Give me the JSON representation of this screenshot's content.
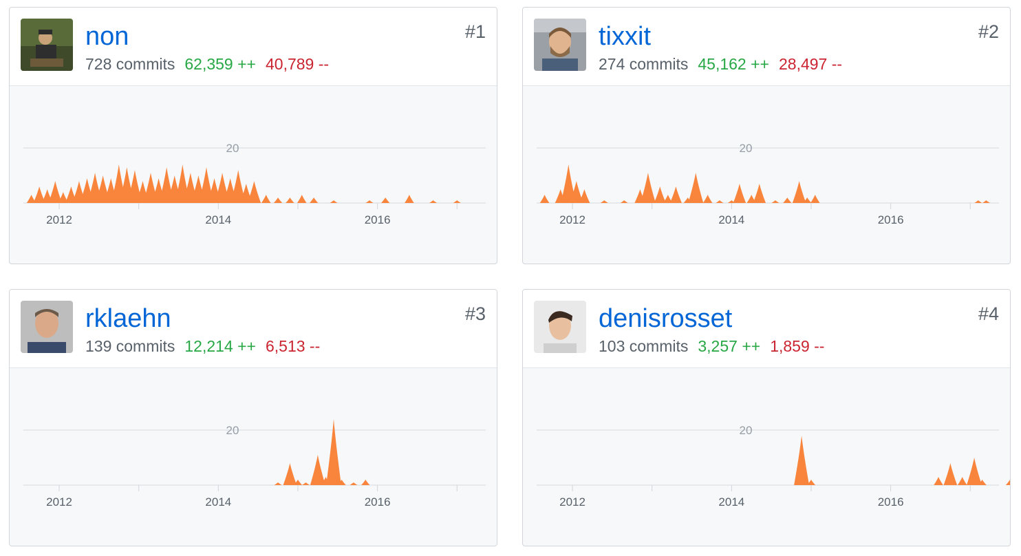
{
  "contributors": [
    {
      "username": "non",
      "commits": "728 commits",
      "additions": "62,359 ++",
      "deletions": "40,789 --",
      "rank": "#1",
      "avatar_icon": "avatar-photo-outdoor"
    },
    {
      "username": "tixxit",
      "commits": "274 commits",
      "additions": "45,162 ++",
      "deletions": "28,497 --",
      "rank": "#2",
      "avatar_icon": "avatar-photo-bearded"
    },
    {
      "username": "rklaehn",
      "commits": "139 commits",
      "additions": "12,214 ++",
      "deletions": "6,513 --",
      "rank": "#3",
      "avatar_icon": "avatar-photo-portrait"
    },
    {
      "username": "denisrosset",
      "commits": "103 commits",
      "additions": "3,257 ++",
      "deletions": "1,859 --",
      "rank": "#4",
      "avatar_icon": "avatar-photo-young"
    }
  ],
  "colors": {
    "link": "#0366d6",
    "additions": "#28a745",
    "deletions": "#cb2431",
    "area": "#f9843c"
  },
  "chart_data": [
    {
      "type": "area",
      "x_tick_labels": [
        "2012",
        "2014",
        "2016",
        "20"
      ],
      "y_grid_label": "20",
      "ylim": [
        0,
        25
      ],
      "x": [
        2011.65,
        2011.75,
        2011.85,
        2011.95,
        2012.05,
        2012.15,
        2012.25,
        2012.35,
        2012.45,
        2012.55,
        2012.65,
        2012.75,
        2012.85,
        2012.95,
        2013.05,
        2013.15,
        2013.25,
        2013.35,
        2013.45,
        2013.55,
        2013.65,
        2013.75,
        2013.85,
        2013.95,
        2014.05,
        2014.15,
        2014.25,
        2014.35,
        2014.45,
        2014.6,
        2014.75,
        2014.9,
        2015.05,
        2015.2,
        2015.45,
        2015.9,
        2016.1,
        2016.4,
        2016.7,
        2017.0
      ],
      "values": [
        3,
        6,
        5,
        8,
        4,
        6,
        8,
        9,
        11,
        10,
        9,
        14,
        13,
        12,
        8,
        11,
        9,
        13,
        10,
        14,
        11,
        10,
        13,
        9,
        11,
        9,
        12,
        7,
        8,
        3,
        2,
        2,
        3,
        2,
        1,
        1,
        2,
        3,
        1,
        1
      ]
    },
    {
      "type": "area",
      "x_tick_labels": [
        "2012",
        "2014",
        "2016",
        "20"
      ],
      "y_grid_label": "20",
      "ylim": [
        0,
        25
      ],
      "x": [
        2011.65,
        2011.85,
        2011.95,
        2012.05,
        2012.15,
        2012.4,
        2012.65,
        2012.85,
        2012.95,
        2013.1,
        2013.2,
        2013.3,
        2013.45,
        2013.55,
        2013.7,
        2013.85,
        2014.0,
        2014.1,
        2014.25,
        2014.35,
        2014.55,
        2014.7,
        2014.85,
        2014.95,
        2015.05,
        2017.1,
        2017.2
      ],
      "values": [
        3,
        5,
        14,
        8,
        5,
        1,
        1,
        5,
        11,
        6,
        3,
        6,
        2,
        11,
        3,
        1,
        1,
        7,
        3,
        7,
        1,
        2,
        8,
        2,
        3,
        1,
        1
      ]
    },
    {
      "type": "area",
      "x_tick_labels": [
        "2012",
        "2014",
        "2016",
        "20"
      ],
      "y_grid_label": "20",
      "ylim": [
        0,
        25
      ],
      "x": [
        2014.75,
        2014.9,
        2015.0,
        2015.1,
        2015.25,
        2015.35,
        2015.45,
        2015.55,
        2015.7,
        2015.85
      ],
      "values": [
        1,
        8,
        2,
        1,
        11,
        3,
        24,
        2,
        1,
        2
      ]
    },
    {
      "type": "area",
      "x_tick_labels": [
        "2012",
        "2014",
        "2016",
        "20"
      ],
      "y_grid_label": "20",
      "ylim": [
        0,
        25
      ],
      "x": [
        2014.88,
        2015.0,
        2016.6,
        2016.75,
        2016.9,
        2017.05,
        2017.15,
        2017.5
      ],
      "values": [
        18,
        2,
        3,
        8,
        3,
        10,
        2,
        2
      ]
    }
  ]
}
